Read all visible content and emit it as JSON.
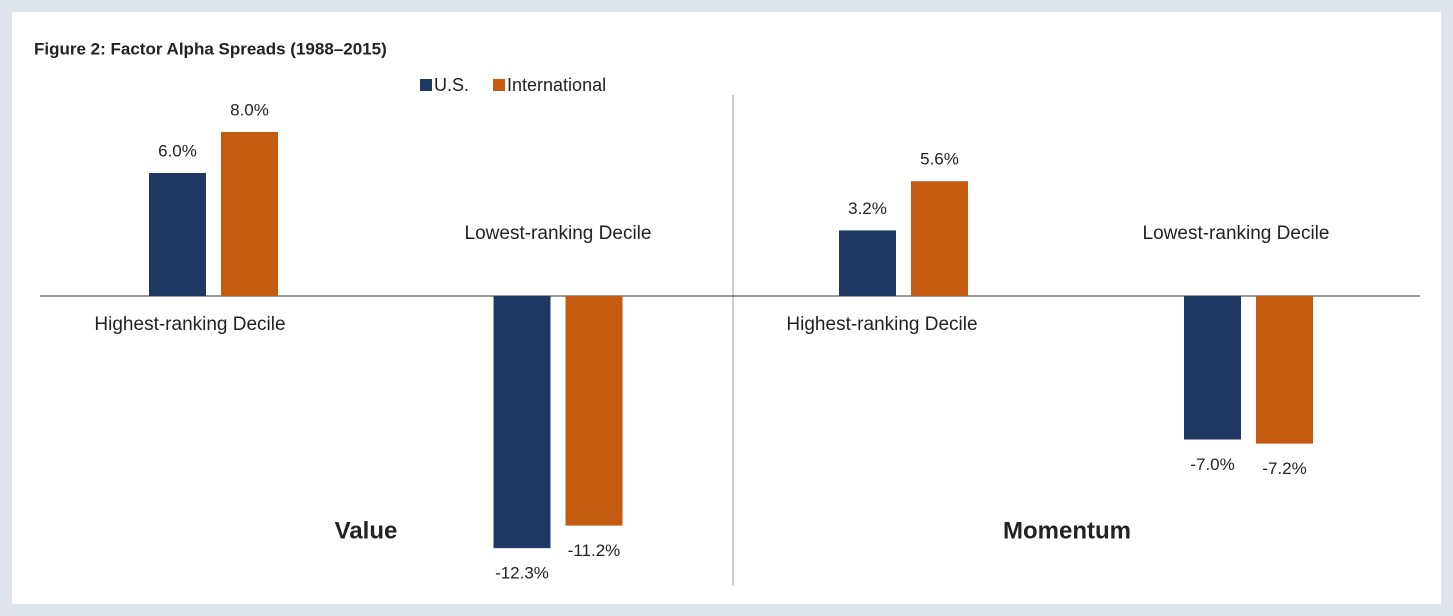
{
  "chart_data": {
    "type": "bar",
    "title": "Figure 2: Factor Alpha Spreads  (1988–2015)",
    "panels": [
      "Value",
      "Momentum"
    ],
    "categories": [
      "Highest-ranking Decile",
      "Lowest-ranking Decile",
      "Highest-ranking Decile",
      "Lowest-ranking Decile"
    ],
    "series": [
      {
        "name": "U.S.",
        "color": "#203864",
        "values": [
          6.0,
          -12.3,
          3.2,
          -7.0
        ],
        "value_labels": [
          "6.0%",
          "-12.3%",
          "3.2%",
          "-7.0%"
        ]
      },
      {
        "name": "International",
        "color": "#c55a11",
        "values": [
          8.0,
          -11.2,
          5.6,
          -7.2
        ],
        "value_labels": [
          "8.0%",
          "-11.2%",
          "5.6%",
          "-7.2%"
        ]
      }
    ]
  }
}
